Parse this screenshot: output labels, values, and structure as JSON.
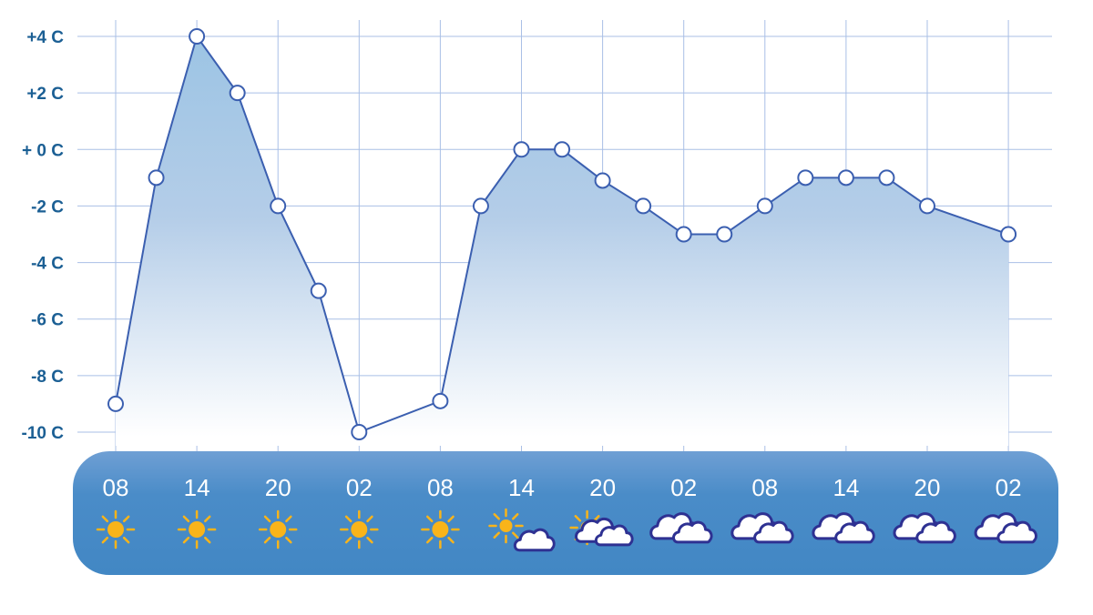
{
  "chart_data": {
    "type": "area",
    "title": "",
    "xlabel": "",
    "ylabel": "",
    "unit": "C",
    "ylim": [
      -10,
      4
    ],
    "y_ticks": [
      "+4 C",
      "+2 C",
      "+ 0 C",
      "-2 C",
      "-4 C",
      "-6 C",
      "-8 C",
      "-10 C"
    ],
    "y_tick_values": [
      4,
      2,
      0,
      -2,
      -4,
      -6,
      -8,
      -10
    ],
    "x_tick_labels": [
      "08",
      "14",
      "20",
      "02",
      "08",
      "14",
      "20",
      "02",
      "08",
      "14",
      "20",
      "02"
    ],
    "point_times": [
      "08",
      "11",
      "14",
      "17",
      "20",
      "23",
      "02",
      "05",
      "08",
      "11",
      "14",
      "17",
      "20",
      "23",
      "02",
      "05",
      "08",
      "11",
      "14",
      "17",
      "20",
      "23",
      "02"
    ],
    "values": [
      -9,
      -1,
      4,
      2,
      -2,
      -5,
      -10,
      null,
      -8.9,
      -2,
      0,
      0,
      -1.1,
      -2,
      -3,
      -3,
      -2,
      -1,
      -1,
      -1,
      -2,
      null,
      -3
    ],
    "grid": true,
    "icons": [
      "sun",
      "sun",
      "sun",
      "sun",
      "sun",
      "sun-with-small-cloud",
      "sun-behind-clouds",
      "clouds",
      "clouds",
      "clouds",
      "clouds",
      "clouds"
    ],
    "colors": {
      "line": "#3b5fb0",
      "fill_top": "#9cc4e4",
      "grid": "#a9bfe6",
      "axis_text": "#1b5f94",
      "band": "#4a8cc8",
      "sun": "#f9b41a",
      "cloud_outline": "#2e3192"
    }
  }
}
